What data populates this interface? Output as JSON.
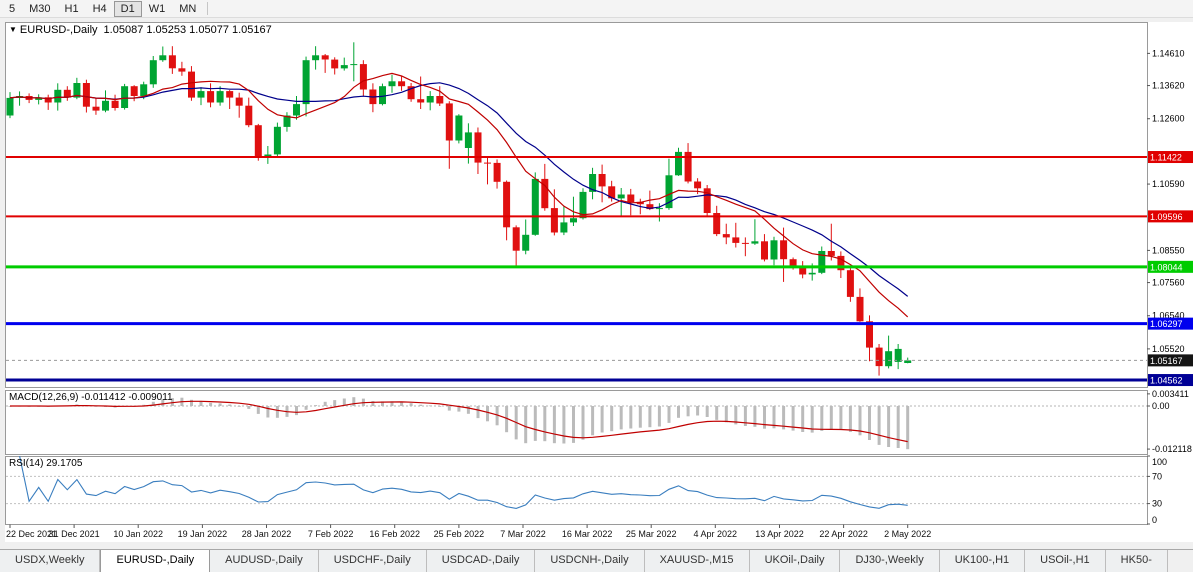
{
  "toolbar": {
    "items": [
      {
        "label": "5",
        "active": false
      },
      {
        "label": "M30",
        "active": false
      },
      {
        "label": "H1",
        "active": false
      },
      {
        "label": "H4",
        "active": false
      },
      {
        "label": "D1",
        "active": true
      },
      {
        "label": "W1",
        "active": false
      },
      {
        "label": "MN",
        "active": false
      }
    ]
  },
  "chart_title": {
    "dropdown": "▼",
    "symbol": "EURUSD-,Daily",
    "ohlc": "1.05087 1.05253 1.05077 1.05167"
  },
  "chart_data": {
    "type": "candlestick",
    "symbol": "EURUSD",
    "timeframe": "Daily",
    "y_range": {
      "max": 1.15575,
      "min": 1.04348
    },
    "y_axis_labels": [
      "1.14610",
      "1.13620",
      "1.12600",
      "1.10590",
      "1.08550",
      "1.07560",
      "1.06540",
      "1.05520"
    ],
    "x_labels": [
      "22 Dec 2021",
      "31 Dec 2021",
      "10 Jan 2022",
      "19 Jan 2022",
      "28 Jan 2022",
      "7 Feb 2022",
      "16 Feb 2022",
      "25 Feb 2022",
      "7 Mar 2022",
      "16 Mar 2022",
      "25 Mar 2022",
      "4 Apr 2022",
      "13 Apr 2022",
      "22 Apr 2022",
      "2 May 2022"
    ],
    "horizontal_lines": [
      {
        "price": 1.11422,
        "label": "1.11422",
        "color": "#e00000",
        "width": 2
      },
      {
        "price": 1.09596,
        "label": "1.09596",
        "color": "#e00000",
        "width": 2
      },
      {
        "price": 1.08044,
        "label": "1.08044",
        "color": "#00cc00",
        "width": 3
      },
      {
        "price": 1.06297,
        "label": "1.06297",
        "color": "#0000ee",
        "width": 3
      },
      {
        "price": 1.04562,
        "label": "1.04562",
        "color": "#000096",
        "width": 3
      }
    ],
    "current_price": {
      "label": "1.05167",
      "color": "#141414"
    },
    "moving_averages": [
      {
        "period": 16,
        "color": "#00008B"
      },
      {
        "period": 10,
        "color": "#C00000"
      }
    ],
    "candles": [
      [
        1.127,
        1.1342,
        1.1262,
        1.1324
      ],
      [
        1.1324,
        1.1344,
        1.13,
        1.133
      ],
      [
        1.133,
        1.1338,
        1.1308,
        1.1318
      ],
      [
        1.1318,
        1.1335,
        1.1304,
        1.1326
      ],
      [
        1.1326,
        1.1334,
        1.1287,
        1.131
      ],
      [
        1.131,
        1.1369,
        1.1285,
        1.1349
      ],
      [
        1.1349,
        1.136,
        1.1315,
        1.1325
      ],
      [
        1.1325,
        1.1386,
        1.132,
        1.137
      ],
      [
        1.137,
        1.138,
        1.1279,
        1.1297
      ],
      [
        1.1297,
        1.1324,
        1.1272,
        1.1285
      ],
      [
        1.1285,
        1.1347,
        1.128,
        1.1315
      ],
      [
        1.1315,
        1.1334,
        1.1285,
        1.1293
      ],
      [
        1.1293,
        1.1367,
        1.1288,
        1.136
      ],
      [
        1.136,
        1.1363,
        1.1314,
        1.133
      ],
      [
        1.133,
        1.1374,
        1.132,
        1.1366
      ],
      [
        1.1366,
        1.1453,
        1.1355,
        1.144
      ],
      [
        1.144,
        1.1482,
        1.1435,
        1.1455
      ],
      [
        1.1455,
        1.1483,
        1.1398,
        1.1415
      ],
      [
        1.1415,
        1.1435,
        1.1392,
        1.1405
      ],
      [
        1.1405,
        1.1422,
        1.1315,
        1.1325
      ],
      [
        1.1325,
        1.1357,
        1.1302,
        1.1345
      ],
      [
        1.1345,
        1.1369,
        1.1295,
        1.131
      ],
      [
        1.131,
        1.136,
        1.13,
        1.1345
      ],
      [
        1.1345,
        1.1348,
        1.129,
        1.1325
      ],
      [
        1.1325,
        1.134,
        1.1263,
        1.13
      ],
      [
        1.13,
        1.1325,
        1.1234,
        1.124
      ],
      [
        1.124,
        1.1244,
        1.1131,
        1.1145
      ],
      [
        1.1145,
        1.1176,
        1.1121,
        1.115
      ],
      [
        1.115,
        1.1248,
        1.114,
        1.1235
      ],
      [
        1.1235,
        1.128,
        1.122,
        1.127
      ],
      [
        1.127,
        1.133,
        1.1257,
        1.1305
      ],
      [
        1.1305,
        1.1451,
        1.1267,
        1.144
      ],
      [
        1.144,
        1.1483,
        1.1411,
        1.1455
      ],
      [
        1.1455,
        1.1459,
        1.1401,
        1.1442
      ],
      [
        1.1442,
        1.1449,
        1.1396,
        1.1415
      ],
      [
        1.1415,
        1.1448,
        1.1408,
        1.1425
      ],
      [
        1.1425,
        1.1495,
        1.1375,
        1.1428
      ],
      [
        1.1428,
        1.144,
        1.133,
        1.135
      ],
      [
        1.135,
        1.1369,
        1.128,
        1.1305
      ],
      [
        1.1305,
        1.1368,
        1.1301,
        1.136
      ],
      [
        1.136,
        1.1395,
        1.134,
        1.1375
      ],
      [
        1.1375,
        1.1392,
        1.1346,
        1.136
      ],
      [
        1.136,
        1.137,
        1.1312,
        1.132
      ],
      [
        1.132,
        1.139,
        1.129,
        1.131
      ],
      [
        1.131,
        1.1345,
        1.1286,
        1.133
      ],
      [
        1.133,
        1.136,
        1.1299,
        1.1307
      ],
      [
        1.1307,
        1.1314,
        1.1106,
        1.1193
      ],
      [
        1.1193,
        1.1274,
        1.1184,
        1.127
      ],
      [
        1.117,
        1.1246,
        1.1122,
        1.1218
      ],
      [
        1.1218,
        1.1233,
        1.109,
        1.1125
      ],
      [
        1.1125,
        1.1143,
        1.1058,
        1.1124
      ],
      [
        1.1124,
        1.1135,
        1.1045,
        1.1066
      ],
      [
        1.1066,
        1.107,
        1.0886,
        1.0926
      ],
      [
        1.0926,
        1.0932,
        1.0806,
        1.0854
      ],
      [
        1.0854,
        1.095,
        1.0843,
        1.0903
      ],
      [
        1.0903,
        1.1095,
        1.09,
        1.1075
      ],
      [
        1.1075,
        1.1121,
        1.0977,
        1.0985
      ],
      [
        1.0985,
        1.1043,
        1.0901,
        1.091
      ],
      [
        1.091,
        1.0992,
        1.0902,
        1.0941
      ],
      [
        1.0941,
        1.102,
        1.093,
        1.0954
      ],
      [
        1.0954,
        1.1046,
        1.095,
        1.1035
      ],
      [
        1.1035,
        1.1109,
        1.1012,
        1.109
      ],
      [
        1.109,
        1.1119,
        1.1003,
        1.1052
      ],
      [
        1.1052,
        1.1069,
        1.1005,
        1.1015
      ],
      [
        1.1015,
        1.1047,
        1.0962,
        1.1027
      ],
      [
        1.1027,
        1.1044,
        1.0963,
        1.1004
      ],
      [
        1.1004,
        1.1014,
        1.0966,
        1.0997
      ],
      [
        1.0997,
        1.1039,
        1.0979,
        1.0982
      ],
      [
        1.0982,
        1.1,
        1.0944,
        1.0985
      ],
      [
        1.0985,
        1.1137,
        1.098,
        1.1086
      ],
      [
        1.1086,
        1.1171,
        1.1084,
        1.1158
      ],
      [
        1.1158,
        1.1185,
        1.1061,
        1.1067
      ],
      [
        1.1067,
        1.1077,
        1.1028,
        1.1046
      ],
      [
        1.1046,
        1.1056,
        1.096,
        1.097
      ],
      [
        1.097,
        1.0992,
        1.0899,
        1.0905
      ],
      [
        1.0905,
        1.0937,
        1.0874,
        1.0895
      ],
      [
        1.0895,
        1.094,
        1.0864,
        1.0878
      ],
      [
        1.0878,
        1.0895,
        1.0837,
        1.0876
      ],
      [
        1.0876,
        1.0951,
        1.0872,
        1.0883
      ],
      [
        1.0883,
        1.0905,
        1.0821,
        1.0827
      ],
      [
        1.0827,
        1.0897,
        1.0809,
        1.0886
      ],
      [
        1.0886,
        1.0925,
        1.0758,
        1.0828
      ],
      [
        1.0828,
        1.0833,
        1.0796,
        1.0807
      ],
      [
        1.0807,
        1.0822,
        1.0769,
        1.0781
      ],
      [
        1.0781,
        1.0815,
        1.0762,
        1.0786
      ],
      [
        1.0786,
        1.0867,
        1.0782,
        1.0853
      ],
      [
        1.0853,
        1.0937,
        1.0824,
        1.0838
      ],
      [
        1.0838,
        1.0852,
        1.077,
        1.0794
      ],
      [
        1.0794,
        1.0804,
        1.0697,
        1.0712
      ],
      [
        1.0712,
        1.0738,
        1.0635,
        1.0637
      ],
      [
        1.0637,
        1.0655,
        1.0514,
        1.0556
      ],
      [
        1.0556,
        1.0567,
        1.047,
        1.0499
      ],
      [
        1.0499,
        1.0593,
        1.0492,
        1.0545
      ],
      [
        1.0512,
        1.0567,
        1.049,
        1.0552
      ],
      [
        1.05087,
        1.05253,
        1.05077,
        1.05167
      ]
    ]
  },
  "macd": {
    "label": "MACD(12,26,9) -0.011412 -0.009011",
    "fast": 12,
    "slow": 26,
    "signal": 9,
    "axis_labels": [
      "0.003411",
      "0.00",
      "-0.012118"
    ],
    "scale": {
      "max": 0.0045,
      "min": -0.0135
    }
  },
  "rsi": {
    "label": "RSI(14) 29.1705",
    "period": 14,
    "levels": [
      70,
      30
    ],
    "axis_labels": [
      "100",
      "70",
      "30",
      "0"
    ]
  },
  "tabs": {
    "items": [
      {
        "label": "USDX,Weekly",
        "active": false
      },
      {
        "label": "EURUSD-,Daily",
        "active": true
      },
      {
        "label": "AUDUSD-,Daily",
        "active": false
      },
      {
        "label": "USDCHF-,Daily",
        "active": false
      },
      {
        "label": "USDCAD-,Daily",
        "active": false
      },
      {
        "label": "USDCNH-,Daily",
        "active": false
      },
      {
        "label": "XAUUSD-,M15",
        "active": false
      },
      {
        "label": "UKOil-,Daily",
        "active": false
      },
      {
        "label": "DJ30-,Weekly",
        "active": false
      },
      {
        "label": "UK100-,H1",
        "active": false
      },
      {
        "label": "USOil-,H1",
        "active": false
      },
      {
        "label": "HK50-",
        "active": false
      }
    ]
  },
  "colors": {
    "up": "#00A432",
    "down": "#E01010",
    "hist": "#BBBBBB",
    "macd_signal": "#C00000",
    "rsi_line": "#3A7EBF",
    "badge_text": "#FFFFFF"
  }
}
